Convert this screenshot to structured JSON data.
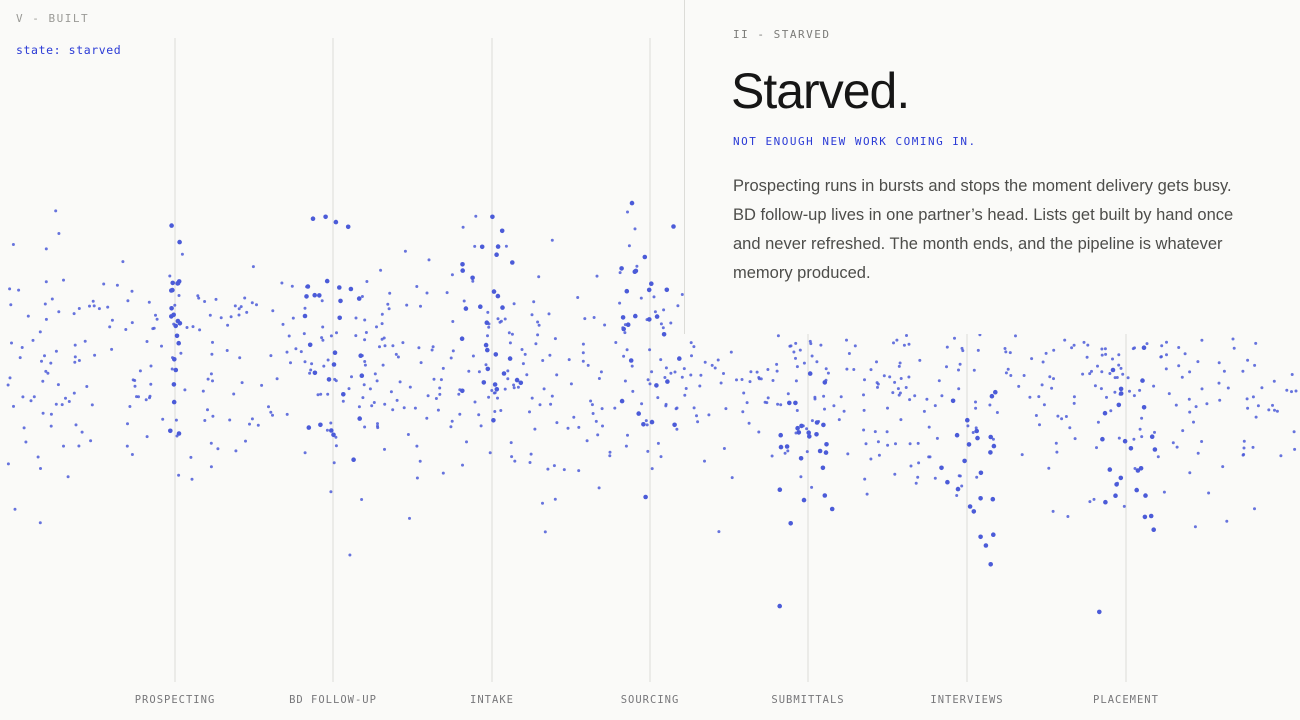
{
  "header": {
    "section_label": "V - BUILT",
    "state_label": "state: starved"
  },
  "panel": {
    "section_label": "II - STARVED",
    "heading": "Starved.",
    "subheading": "NOT ENOUGH NEW WORK COMING IN.",
    "body": "Prospecting runs in bursts and stops the moment delivery gets busy. BD follow-up lives in one partner’s head. Lists get built by hand once and never refreshed. The month ends, and the pipeline is whatever memory produced."
  },
  "stages": [
    "PROSPECTING",
    "BD FOLLOW-UP",
    "INTAKE",
    "SOURCING",
    "SUBMITTALS",
    "INTERVIEWS",
    "PLACEMENT"
  ],
  "colors": {
    "background": "#fafaf8",
    "accent": "#2b3bd6",
    "dot": "#4b5bd8",
    "guide_line": "#dcdcd8"
  }
}
